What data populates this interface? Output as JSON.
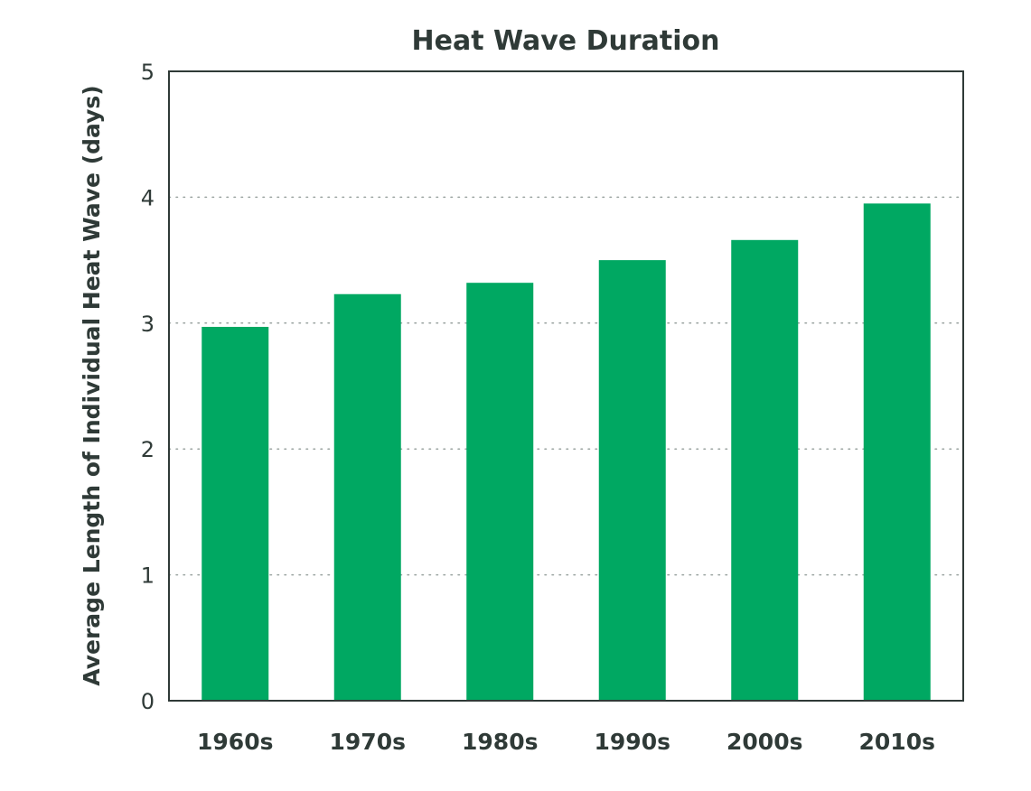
{
  "chart_data": {
    "type": "bar",
    "title": "Heat Wave Duration",
    "xlabel": "",
    "ylabel": "Average Length of Individual Heat Wave (days)",
    "categories": [
      "1960s",
      "1970s",
      "1980s",
      "1990s",
      "2000s",
      "2010s"
    ],
    "values": [
      2.97,
      3.23,
      3.32,
      3.5,
      3.66,
      3.95
    ],
    "ylim": [
      0,
      5
    ],
    "yticks": [
      "0",
      "1",
      "2",
      "3",
      "4",
      "5"
    ],
    "grid": true,
    "legend": "none",
    "colors": {
      "bar": "#00a862",
      "axis": "#2f3a37",
      "grid": "#9aa3a0",
      "text": "#2f3a37"
    }
  }
}
